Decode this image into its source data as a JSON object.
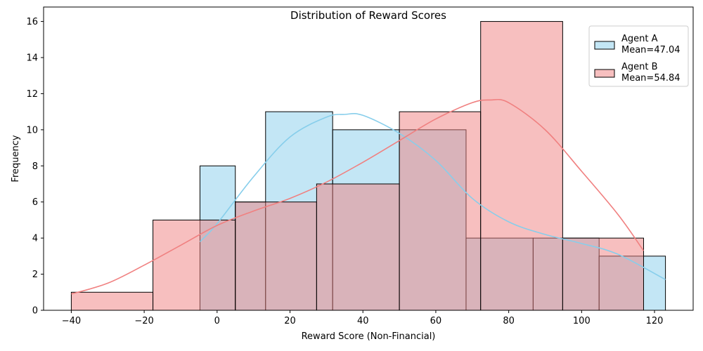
{
  "chart_data": {
    "type": "bar",
    "title": "Distribution of Reward Scores",
    "xlabel": "Reward Score (Non-Financial)",
    "ylabel": "Frequency",
    "xlim": [
      -47.6,
      130.6
    ],
    "ylim": [
      0,
      16.8
    ],
    "xticks": [
      -40,
      -20,
      0,
      20,
      40,
      60,
      80,
      100,
      120
    ],
    "yticks": [
      0,
      2,
      4,
      6,
      8,
      10,
      12,
      14,
      16
    ],
    "legend_position": "top-right",
    "grid": false,
    "series": [
      {
        "name": "Agent A",
        "mean_label": "Mean=47.04",
        "color": "#87ceeb",
        "bins": [
          {
            "x0": -4.7,
            "x1": 5.0,
            "count": 8
          },
          {
            "x0": 5.0,
            "x1": 13.3,
            "count": 6
          },
          {
            "x0": 13.3,
            "x1": 31.7,
            "count": 11
          },
          {
            "x0": 31.7,
            "x1": 50.0,
            "count": 10
          },
          {
            "x0": 50.0,
            "x1": 68.3,
            "count": 10
          },
          {
            "x0": 68.3,
            "x1": 86.7,
            "count": 4
          },
          {
            "x0": 86.7,
            "x1": 104.8,
            "count": 4
          },
          {
            "x0": 104.8,
            "x1": 123.0,
            "count": 3
          }
        ],
        "kde": [
          [
            -4.7,
            3.8
          ],
          [
            0,
            4.8
          ],
          [
            10,
            7.4
          ],
          [
            20,
            9.6
          ],
          [
            30,
            10.7
          ],
          [
            35,
            10.85
          ],
          [
            40,
            10.8
          ],
          [
            50,
            9.8
          ],
          [
            60,
            8.3
          ],
          [
            70,
            6.2
          ],
          [
            80,
            4.9
          ],
          [
            90,
            4.2
          ],
          [
            100,
            3.7
          ],
          [
            110,
            3.1
          ],
          [
            123,
            1.7
          ]
        ]
      },
      {
        "name": "Agent B",
        "mean_label": "Mean=54.84",
        "color": "#f08080",
        "bins": [
          {
            "x0": -40.0,
            "x1": -17.6,
            "count": 1
          },
          {
            "x0": -17.6,
            "x1": 5.0,
            "count": 5
          },
          {
            "x0": 5.0,
            "x1": 27.3,
            "count": 6
          },
          {
            "x0": 27.3,
            "x1": 50.0,
            "count": 7
          },
          {
            "x0": 50.0,
            "x1": 72.3,
            "count": 11
          },
          {
            "x0": 72.3,
            "x1": 94.8,
            "count": 16
          },
          {
            "x0": 94.8,
            "x1": 117.0,
            "count": 4
          }
        ],
        "kde": [
          [
            -40,
            0.9
          ],
          [
            -30,
            1.5
          ],
          [
            -20,
            2.5
          ],
          [
            -10,
            3.6
          ],
          [
            0,
            4.7
          ],
          [
            10,
            5.5
          ],
          [
            20,
            6.2
          ],
          [
            30,
            7.1
          ],
          [
            40,
            8.2
          ],
          [
            50,
            9.4
          ],
          [
            60,
            10.6
          ],
          [
            70,
            11.5
          ],
          [
            75,
            11.65
          ],
          [
            80,
            11.5
          ],
          [
            90,
            10.0
          ],
          [
            100,
            7.7
          ],
          [
            110,
            5.3
          ],
          [
            117,
            3.3
          ]
        ]
      }
    ]
  }
}
